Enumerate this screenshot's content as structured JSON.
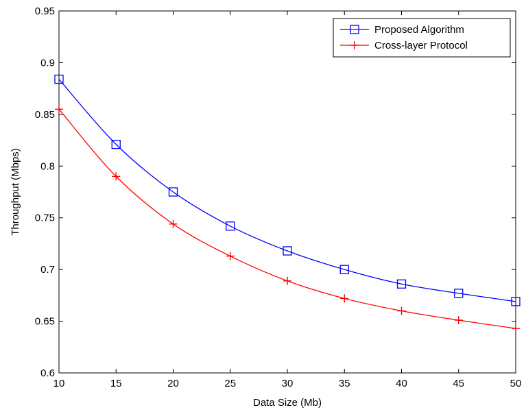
{
  "chart_data": {
    "type": "line",
    "title": "",
    "xlabel": "Data Size (Mb)",
    "ylabel": "Throughput (Mbps)",
    "xlim": [
      10,
      50
    ],
    "ylim": [
      0.6,
      0.95
    ],
    "x_ticks": [
      10,
      15,
      20,
      25,
      30,
      35,
      40,
      45,
      50
    ],
    "y_ticks": [
      0.6,
      0.65,
      0.7,
      0.75,
      0.8,
      0.85,
      0.9,
      0.95
    ],
    "y_tick_labels": [
      "0.6",
      "0.65",
      "0.7",
      "0.75",
      "0.8",
      "0.85",
      "0.9",
      "0.95"
    ],
    "grid": false,
    "legend_position": "top-right",
    "x": [
      10,
      15,
      20,
      25,
      30,
      35,
      40,
      45,
      50
    ],
    "series": [
      {
        "name": "Proposed Algorithm",
        "color": "#0000ff",
        "marker": "square",
        "values": [
          0.884,
          0.821,
          0.775,
          0.742,
          0.718,
          0.7,
          0.686,
          0.677,
          0.669
        ]
      },
      {
        "name": "Cross-layer Protocol",
        "color": "#ff0000",
        "marker": "plus",
        "values": [
          0.855,
          0.79,
          0.744,
          0.713,
          0.689,
          0.672,
          0.66,
          0.651,
          0.643
        ]
      }
    ]
  }
}
